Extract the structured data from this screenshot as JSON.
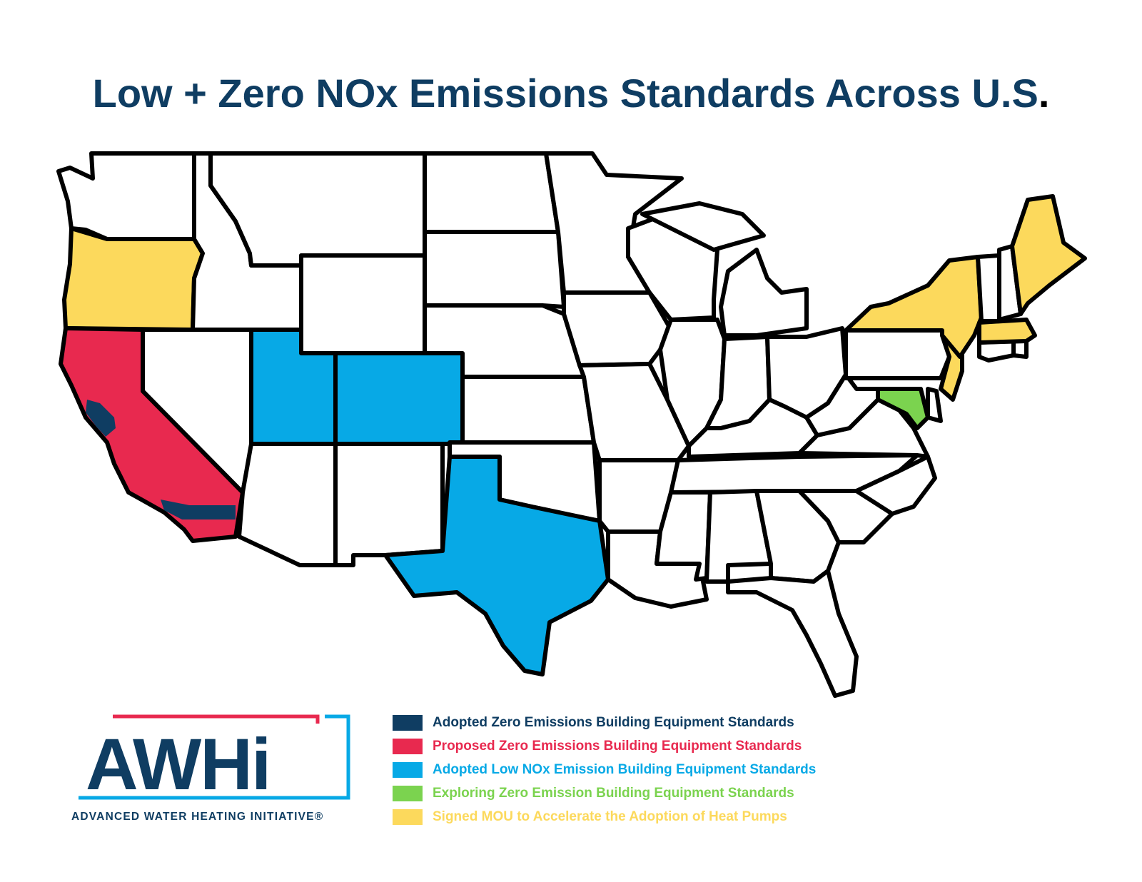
{
  "title": {
    "text": "Low + Zero NOx Emissions Standards Across U.S",
    "trailing": "."
  },
  "colors": {
    "adopted_zero": "#0f3d62",
    "proposed_zero": "#e8294f",
    "adopted_low_nox": "#07a9e6",
    "exploring_zero": "#7bd34f",
    "signed_mou": "#fcd95c",
    "none": "#ffffff"
  },
  "legend": [
    {
      "label": "Adopted Zero Emissions Building Equipment Standards",
      "category": "adopted_zero",
      "text_color": "#0f3d62"
    },
    {
      "label": "Proposed Zero Emissions Building Equipment Standards",
      "category": "proposed_zero",
      "text_color": "#e8294f"
    },
    {
      "label": "Adopted Low NOx Emission Building Equipment Standards",
      "category": "adopted_low_nox",
      "text_color": "#07a9e6"
    },
    {
      "label": "Exploring Zero Emission Building Equipment Standards",
      "category": "exploring_zero",
      "text_color": "#7bd34f"
    },
    {
      "label": "Signed MOU to Accelerate the Adoption of Heat Pumps",
      "category": "signed_mou",
      "text_color": "#fcd95c"
    }
  ],
  "states": [
    {
      "name": "Oregon",
      "category": "signed_mou"
    },
    {
      "name": "California",
      "category": "proposed_zero"
    },
    {
      "name": "Utah",
      "category": "adopted_low_nox"
    },
    {
      "name": "Colorado",
      "category": "adopted_low_nox"
    },
    {
      "name": "Texas",
      "category": "adopted_low_nox"
    },
    {
      "name": "Maryland",
      "category": "exploring_zero"
    },
    {
      "name": "New York",
      "category": "signed_mou"
    },
    {
      "name": "New Jersey",
      "category": "signed_mou"
    },
    {
      "name": "Maine",
      "category": "signed_mou"
    },
    {
      "name": "Massachusetts",
      "category": "signed_mou"
    },
    {
      "name": "Washington",
      "category": "none"
    },
    {
      "name": "Idaho",
      "category": "none"
    },
    {
      "name": "Montana",
      "category": "none"
    },
    {
      "name": "Wyoming",
      "category": "none"
    },
    {
      "name": "Nevada",
      "category": "none"
    },
    {
      "name": "Arizona",
      "category": "none"
    },
    {
      "name": "New Mexico",
      "category": "none"
    },
    {
      "name": "North Dakota",
      "category": "none"
    },
    {
      "name": "South Dakota",
      "category": "none"
    },
    {
      "name": "Nebraska",
      "category": "none"
    },
    {
      "name": "Kansas",
      "category": "none"
    },
    {
      "name": "Oklahoma",
      "category": "none"
    },
    {
      "name": "Minnesota",
      "category": "none"
    },
    {
      "name": "Iowa",
      "category": "none"
    },
    {
      "name": "Missouri",
      "category": "none"
    },
    {
      "name": "Arkansas",
      "category": "none"
    },
    {
      "name": "Louisiana",
      "category": "none"
    },
    {
      "name": "Wisconsin",
      "category": "none"
    },
    {
      "name": "Illinois",
      "category": "none"
    },
    {
      "name": "Michigan",
      "category": "none"
    },
    {
      "name": "Indiana",
      "category": "none"
    },
    {
      "name": "Ohio",
      "category": "none"
    },
    {
      "name": "Kentucky",
      "category": "none"
    },
    {
      "name": "Tennessee",
      "category": "none"
    },
    {
      "name": "Mississippi",
      "category": "none"
    },
    {
      "name": "Alabama",
      "category": "none"
    },
    {
      "name": "Georgia",
      "category": "none"
    },
    {
      "name": "Florida",
      "category": "none"
    },
    {
      "name": "South Carolina",
      "category": "none"
    },
    {
      "name": "North Carolina",
      "category": "none"
    },
    {
      "name": "Virginia",
      "category": "none"
    },
    {
      "name": "West Virginia",
      "category": "none"
    },
    {
      "name": "Pennsylvania",
      "category": "none"
    },
    {
      "name": "Delaware",
      "category": "none"
    },
    {
      "name": "Connecticut",
      "category": "none"
    },
    {
      "name": "Rhode Island",
      "category": "none"
    },
    {
      "name": "Vermont",
      "category": "none"
    },
    {
      "name": "New Hampshire",
      "category": "none"
    }
  ],
  "logo": {
    "wordmark": "AWHi",
    "caption": "ADVANCED WATER HEATING INITIATIVE®"
  }
}
